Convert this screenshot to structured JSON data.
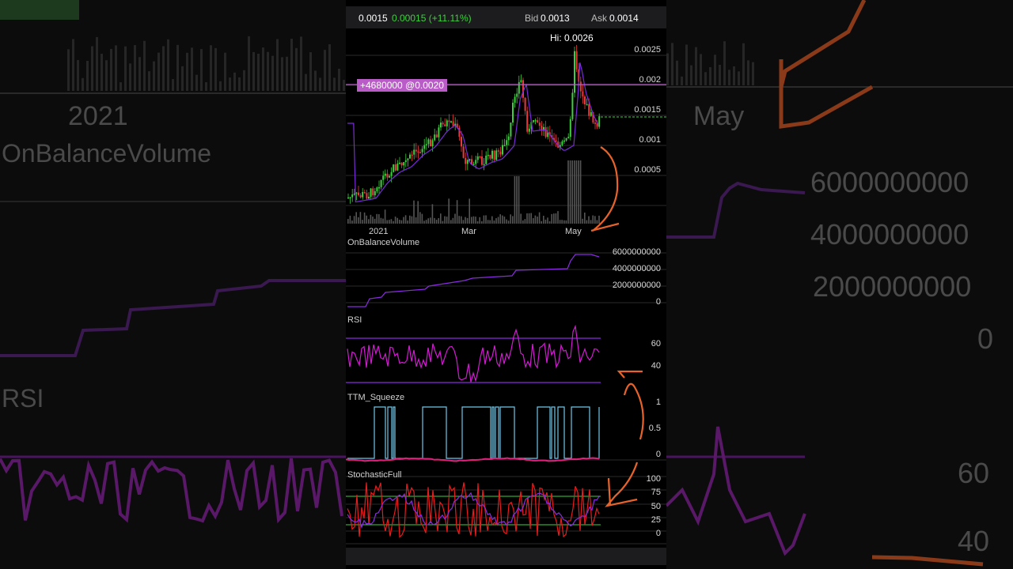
{
  "quote": {
    "last": "0.0015",
    "change": "0.00015 (+11.11%)",
    "bid_label": "Bid",
    "bid": "0.0013",
    "ask_label": "Ask",
    "ask": "0.0014",
    "change_color": "#3ecf3e"
  },
  "price_chart": {
    "hi_label": "Hi: 0.0026",
    "position_tag": "+4680000 @0.0020",
    "y_ticks": [
      "0.0025",
      "0.002",
      "0.0015",
      "0.001",
      "0.0005"
    ],
    "x_ticks": [
      "2021",
      "Mar",
      "May"
    ]
  },
  "obv": {
    "title": "OnBalanceVolume",
    "y_ticks": [
      "6000000000",
      "4000000000",
      "2000000000",
      "0"
    ]
  },
  "rsi": {
    "title": "RSI",
    "y_ticks": [
      "60",
      "40"
    ]
  },
  "squeeze": {
    "title": "TTM_Squeeze",
    "y_ticks": [
      "1",
      "0.5",
      "0"
    ]
  },
  "stoch": {
    "title": "StochasticFull",
    "y_ticks": [
      "100",
      "75",
      "50",
      "25",
      "0"
    ]
  },
  "background": {
    "year": "2021",
    "month": "May",
    "obv_title": "OnBalanceVolume",
    "obv_ticks": [
      "6000000000",
      "4000000000",
      "2000000000",
      "0"
    ],
    "rsi_title": "RSI",
    "rsi_ticks": [
      "60",
      "40"
    ]
  },
  "colors": {
    "up_candle": "#3ecf3e",
    "down_candle": "#e83a3a",
    "indicator_purple": "#a020f0",
    "rsi_magenta": "#d21bd2",
    "squeeze_blue": "#6ec6e8",
    "annotation_orange": "#e8632a"
  }
}
